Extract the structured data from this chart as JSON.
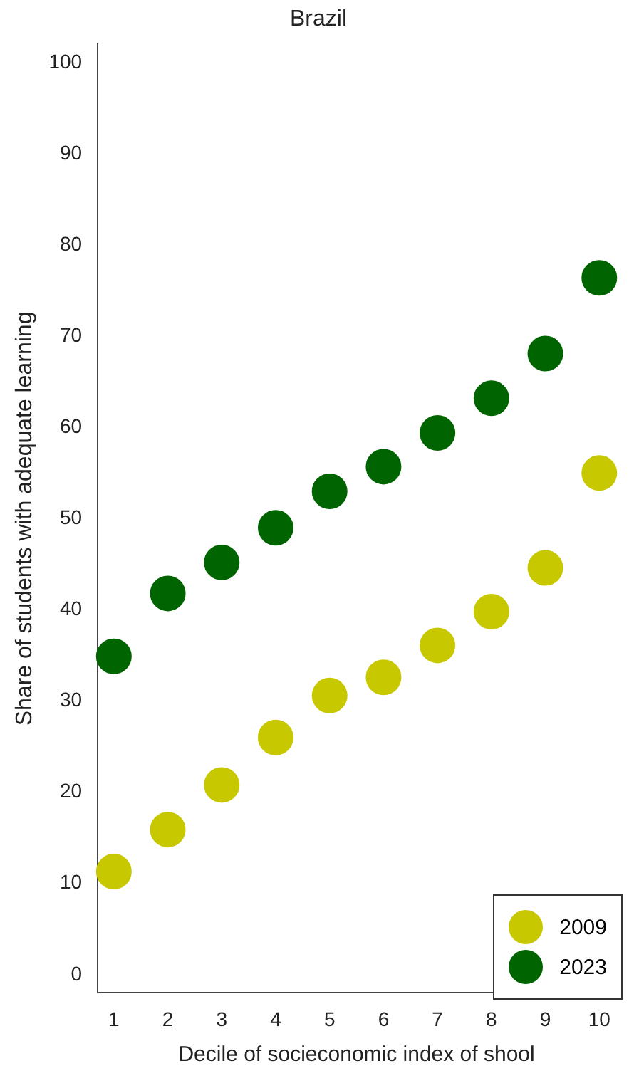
{
  "chart_data": {
    "type": "scatter",
    "title": "Brazil",
    "xlabel": "Decile of socieconomic index of shool",
    "ylabel": "Share of students with adequate learning",
    "x": [
      1,
      2,
      3,
      4,
      5,
      6,
      7,
      8,
      9,
      10
    ],
    "series": [
      {
        "name": "2009",
        "color": "#c8c800",
        "values": [
          11.3,
          15.9,
          20.8,
          26.0,
          30.6,
          32.6,
          36.1,
          39.8,
          44.6,
          55.0
        ]
      },
      {
        "name": "2023",
        "color": "#006400",
        "values": [
          34.9,
          41.8,
          45.2,
          49.0,
          53.0,
          55.7,
          59.4,
          63.2,
          68.1,
          76.4
        ]
      }
    ],
    "xlim": [
      0.7,
      10.3
    ],
    "xticks": [
      1,
      2,
      3,
      4,
      5,
      6,
      7,
      8,
      9,
      10
    ],
    "ylim": [
      -2,
      102
    ],
    "yticks": [
      0,
      10,
      20,
      30,
      40,
      50,
      60,
      70,
      80,
      90,
      100
    ],
    "grid": false,
    "legend": "bottom right",
    "marker": "circle"
  }
}
